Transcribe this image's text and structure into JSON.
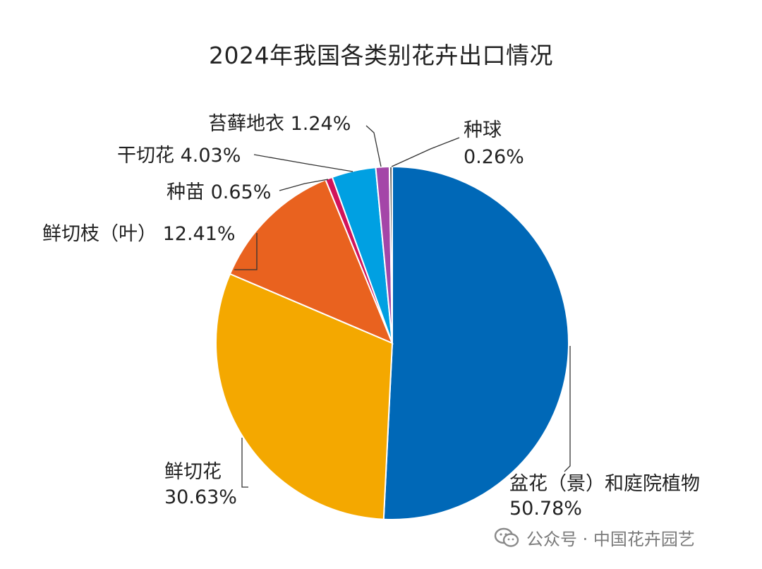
{
  "chart_data": {
    "type": "pie",
    "title": "2024年我国各类别花卉出口情况",
    "unit": "%",
    "slices": [
      {
        "name": "盆花（景）和庭院植物",
        "value": 50.78,
        "value_label": "50.78%",
        "color": "#0068b7"
      },
      {
        "name": "鲜切花",
        "value": 30.63,
        "value_label": "30.63%",
        "color": "#f4a800"
      },
      {
        "name": "鲜切枝（叶）",
        "value": 12.41,
        "value_label": "12.41%",
        "color": "#e9621f"
      },
      {
        "name": "种苗",
        "value": 0.65,
        "value_label": "0.65%",
        "color": "#d2145a"
      },
      {
        "name": "干切花",
        "value": 4.03,
        "value_label": "4.03%",
        "color": "#00a0e2"
      },
      {
        "name": "苔藓地衣",
        "value": 1.24,
        "value_label": "1.24%",
        "color": "#a446a8"
      },
      {
        "name": "种球",
        "value": 0.26,
        "value_label": "0.26%",
        "color": "#6b6b6b"
      }
    ]
  },
  "watermark": {
    "icon": "wechat-icon",
    "text": "公众号 · 中国花卉园艺"
  }
}
